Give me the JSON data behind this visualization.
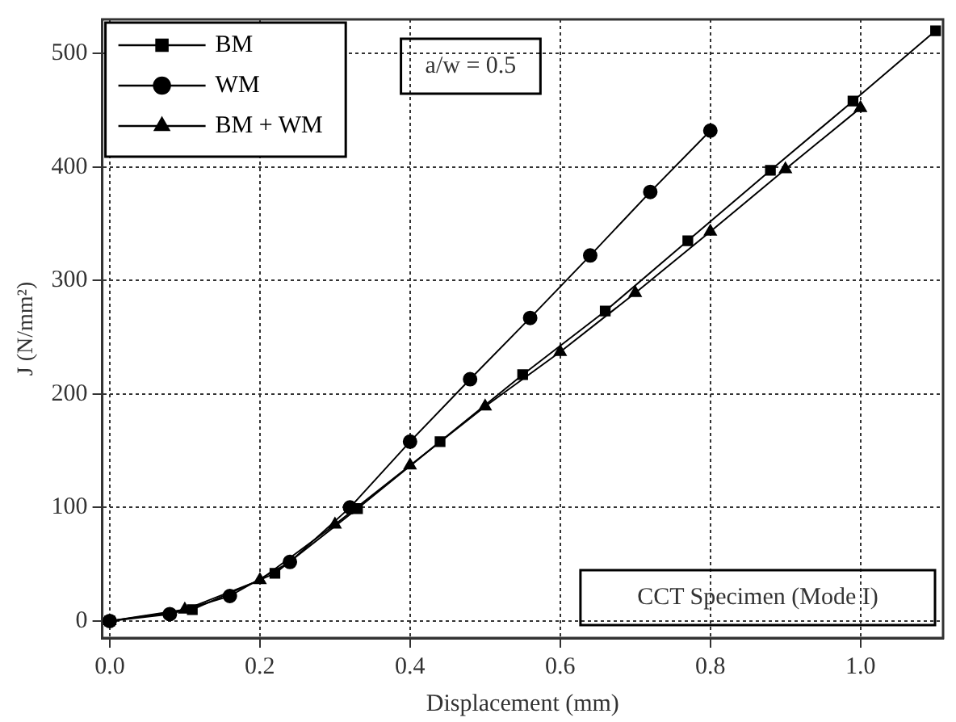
{
  "chart_data": {
    "type": "line",
    "xlabel": "Displacement (mm)",
    "ylabel": "J (N/mm²)",
    "xlim": [
      -0.01,
      1.11
    ],
    "ylim": [
      -15,
      530
    ],
    "xticks": [
      {
        "value": 0,
        "label": "0.0"
      },
      {
        "value": 0.2,
        "label": "0.2"
      },
      {
        "value": 0.4,
        "label": "0.4"
      },
      {
        "value": 0.6,
        "label": "0.6"
      },
      {
        "value": 0.8,
        "label": "0.8"
      },
      {
        "value": 1,
        "label": "1.0"
      }
    ],
    "yticks": [
      0,
      100,
      200,
      300,
      400,
      500
    ],
    "grid": true,
    "legend": "top left",
    "line_style": "solid",
    "annotations": [
      "a/w = 0.5",
      "CCT Specimen (Mode I)"
    ],
    "series": [
      {
        "name": "BM",
        "color": "#000000",
        "marker": "square",
        "x": [
          0,
          0.11,
          0.22,
          0.33,
          0.44,
          0.55,
          0.66,
          0.77,
          0.88,
          0.99,
          1.1
        ],
        "values": [
          0,
          10,
          42,
          99,
          158,
          217,
          273,
          335,
          397,
          458,
          520
        ]
      },
      {
        "name": "WM",
        "color": "#000000",
        "marker": "circle",
        "x": [
          0,
          0.08,
          0.16,
          0.24,
          0.32,
          0.4,
          0.48,
          0.56,
          0.64,
          0.72,
          0.8
        ],
        "values": [
          0,
          6,
          22,
          52,
          100,
          158,
          213,
          267,
          322,
          378,
          432
        ]
      },
      {
        "name": "BM + WM",
        "color": "#000000",
        "marker": "triangle",
        "x": [
          0,
          0.1,
          0.2,
          0.3,
          0.4,
          0.5,
          0.6,
          0.7,
          0.8,
          0.9,
          1.0
        ],
        "values": [
          0,
          10,
          36,
          85,
          137,
          189,
          237,
          289,
          343,
          398,
          452
        ]
      }
    ]
  }
}
